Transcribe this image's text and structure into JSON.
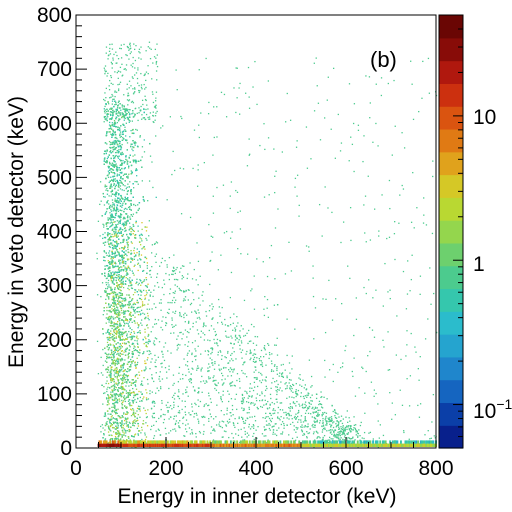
{
  "chart_data": {
    "type": "heatmap",
    "xlabel": "Energy in inner detector (keV)",
    "ylabel": "Energy in veto detector (keV)",
    "xlim": [
      0,
      800
    ],
    "ylim": [
      0,
      800
    ],
    "x_ticks": [
      "0",
      "200",
      "400",
      "600",
      "800"
    ],
    "y_ticks": [
      "0",
      "100",
      "200",
      "300",
      "400",
      "500",
      "600",
      "700",
      "800"
    ],
    "annotation": "(b)",
    "colorbar": {
      "scale": "log",
      "range": [
        0.05,
        50
      ],
      "tick_values": [
        0.1,
        1,
        10
      ],
      "tick_labels": {
        "base": "10",
        "exponent": "−1",
        "one": "1",
        "ten": "10"
      },
      "colors": [
        "#08208c",
        "#0b3fa8",
        "#1565c0",
        "#1f86cc",
        "#25a4cf",
        "#2bbccc",
        "#35c7ad",
        "#4ccb8e",
        "#6dd06e",
        "#94d64d",
        "#b9d832",
        "#d5c826",
        "#e0a21c",
        "#e07a14",
        "#da5410",
        "#cc300f",
        "#b0180e",
        "#880c08",
        "#6a0604"
      ]
    },
    "grid": false,
    "description_of_density": {
      "dense_region_x": [
        50,
        200
      ],
      "dense_region_y": [
        0,
        650
      ],
      "diagonal_band_to": [
        600,
        0
      ],
      "high_count_band_y": [
        0,
        8
      ]
    }
  }
}
